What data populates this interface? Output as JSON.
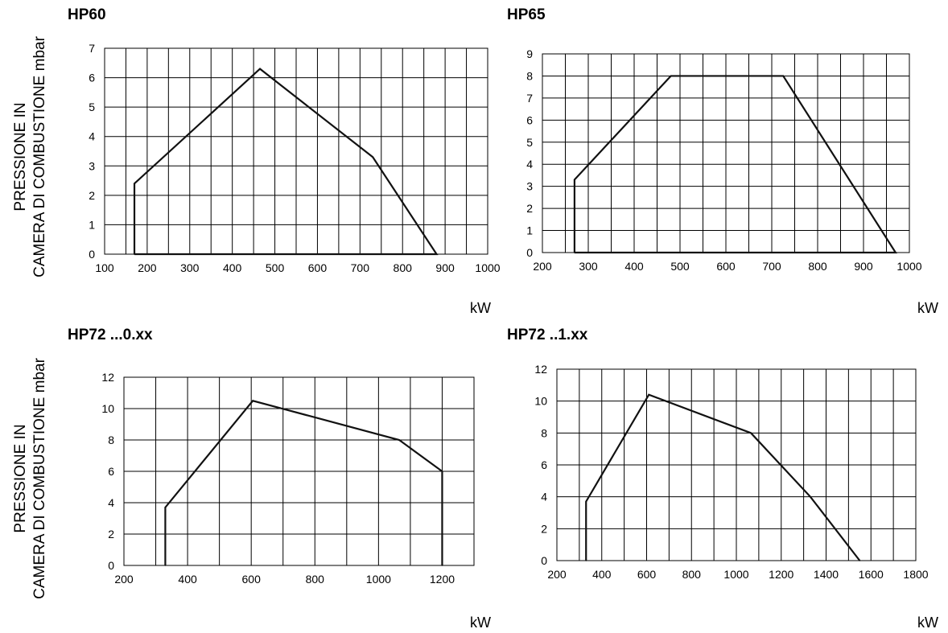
{
  "y_axis_label_lines": [
    "PRESSIONE IN",
    "CAMERA DI COMBUSTIONE mbar"
  ],
  "chart_data": [
    {
      "type": "line",
      "title": "HP60",
      "xlabel": "kW",
      "ylabel": "PRESSIONE IN CAMERA DI COMBUSTIONE mbar",
      "xlim": [
        100,
        1000
      ],
      "ylim": [
        0,
        7
      ],
      "x_ticks": [
        100,
        200,
        300,
        400,
        500,
        600,
        700,
        800,
        900,
        1000
      ],
      "y_ticks": [
        0,
        1,
        2,
        3,
        4,
        5,
        6,
        7
      ],
      "x_grid_step": 50,
      "y_grid_step": 1,
      "grid": true,
      "series": [
        {
          "x": [
            170,
            170,
            465,
            730,
            880,
            170
          ],
          "y": [
            0,
            2.4,
            6.3,
            3.3,
            0,
            0
          ]
        }
      ]
    },
    {
      "type": "line",
      "title": "HP65",
      "xlabel": "kW",
      "ylabel": "",
      "xlim": [
        200,
        1000
      ],
      "ylim": [
        0,
        9
      ],
      "x_ticks": [
        200,
        300,
        400,
        500,
        600,
        700,
        800,
        900,
        1000
      ],
      "y_ticks": [
        0,
        1,
        2,
        3,
        4,
        5,
        6,
        7,
        8,
        9
      ],
      "x_grid_step": 50,
      "y_grid_step": 1,
      "grid": true,
      "series": [
        {
          "x": [
            270,
            270,
            480,
            725,
            970,
            270
          ],
          "y": [
            0,
            3.3,
            8.0,
            8.0,
            0,
            0
          ]
        }
      ]
    },
    {
      "type": "line",
      "title": "HP72 ...0.xx",
      "xlabel": "kW",
      "ylabel": "PRESSIONE IN CAMERA DI COMBUSTIONE mbar",
      "xlim": [
        200,
        1300
      ],
      "ylim": [
        0,
        12
      ],
      "x_ticks": [
        200,
        400,
        600,
        800,
        1000,
        1200
      ],
      "y_ticks": [
        0,
        2,
        4,
        6,
        8,
        10,
        12
      ],
      "x_grid_step": 100,
      "y_grid_step": 2,
      "grid": true,
      "series": [
        {
          "x": [
            330,
            330,
            605,
            1065,
            1200,
            1200
          ],
          "y": [
            0,
            3.7,
            10.5,
            8.0,
            6.0,
            0
          ]
        }
      ]
    },
    {
      "type": "line",
      "title": "HP72 ..1.xx",
      "xlabel": "kW",
      "ylabel": "",
      "xlim": [
        200,
        1800
      ],
      "ylim": [
        0,
        12
      ],
      "x_ticks": [
        200,
        400,
        600,
        800,
        1000,
        1200,
        1400,
        1600,
        1800
      ],
      "y_ticks": [
        0,
        2,
        4,
        6,
        8,
        10,
        12
      ],
      "x_grid_step": 100,
      "y_grid_step": 2,
      "grid": true,
      "series": [
        {
          "x": [
            330,
            330,
            610,
            1065,
            1330,
            1550
          ],
          "y": [
            0,
            3.7,
            10.4,
            8.0,
            4.0,
            0
          ]
        }
      ]
    }
  ]
}
